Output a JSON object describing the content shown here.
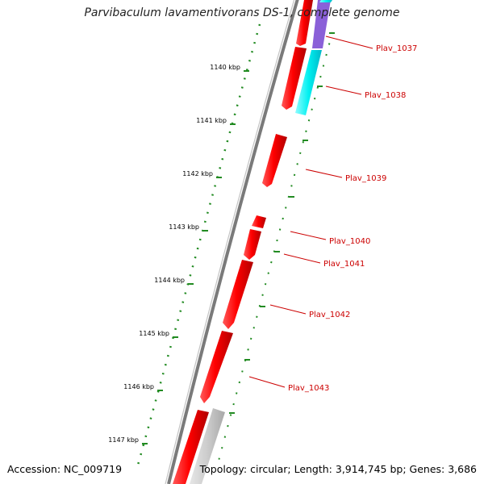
{
  "title": "Parvibaculum lavamentivorans DS-1, complete genome",
  "accession": "Accession: NC_009719",
  "stats": "Topology: circular; Length: 3,914,745 bp; Genes: 3,686",
  "colors": {
    "backbone": "#808080",
    "tick_ring": "#228B22",
    "gene_forward": "#ff0000",
    "gene_label": "#cc0000",
    "cyan_feature": "#00ffff",
    "purple_feature": "#8a60d8",
    "grey_feature": "#c8c8c8"
  },
  "ticks": [
    "1140 kbp",
    "1141 kbp",
    "1142 kbp",
    "1143 kbp",
    "1144 kbp",
    "1145 kbp",
    "1146 kbp",
    "1147 kbp"
  ],
  "genes": [
    "Plav_1037",
    "Plav_1038",
    "Plav_1039",
    "Plav_1040",
    "Plav_1041",
    "Plav_1042",
    "Plav_1043"
  ]
}
